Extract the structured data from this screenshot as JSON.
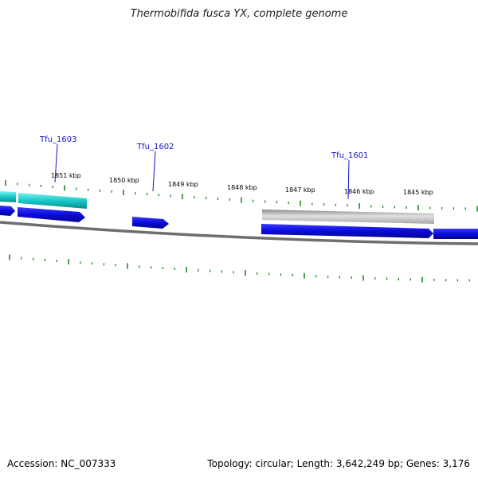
{
  "title": "Thermobifida fusca YX, complete genome",
  "footer": {
    "accession": "Accession: NC_007333",
    "summary": "Topology: circular; Length: 3,642,249 bp; Genes: 3,176"
  },
  "scale_labels": [
    "1851 kbp",
    "1850 kbp",
    "1849 kbp",
    "1848 kbp",
    "1847 kbp",
    "1846 kbp",
    "1845 kbp"
  ],
  "gene_labels": [
    "Tfu_1603",
    "Tfu_1602",
    "Tfu_1601"
  ],
  "colors": {
    "forward_cds": "#0a0adc",
    "cds_cyan": "#19c8c8",
    "gray_feature": "#b4b4b4",
    "backbone": "#6e6e6e",
    "tick": "#1f8a1f",
    "label_line": "#1414c8"
  }
}
